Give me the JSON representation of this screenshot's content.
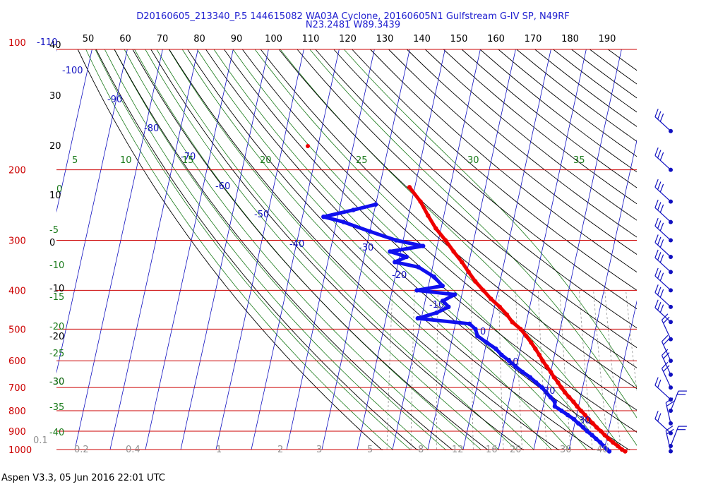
{
  "header": {
    "line1": "D20160605_213340_P.5 144615082 WA03A Cyclone, 20160605N1 Gulfstream G-IV SP, N49RF",
    "line2": "N23.2481 W89.3439"
  },
  "footer": "Aspen V3.3, 05 Jun 2016  22:01 UTC",
  "colors": {
    "isobar": "#cc0000",
    "isotherm": "#1010c0",
    "dry_adiabat": "#000000",
    "moist_adiabat": "#1a7a1a",
    "mixing_ratio": "#909090",
    "temperature": "#ee0000",
    "dewpoint": "#1010ee"
  },
  "chart_data": {
    "type": "scatter",
    "title": "",
    "xlabel": "",
    "ylabel": "",
    "x_axis_top_ticks": [
      "50",
      "60",
      "70",
      "80",
      "90",
      "100",
      "110",
      "120",
      "130",
      "140",
      "150",
      "160",
      "170",
      "180",
      "190"
    ],
    "pressure_ticks": [
      "100",
      "200",
      "300",
      "400",
      "500",
      "600",
      "700",
      "800",
      "900",
      "1000"
    ],
    "pressure_levels": [
      100,
      200,
      300,
      400,
      500,
      600,
      700,
      800,
      900,
      1000
    ],
    "left_scale_ticks": [
      "40",
      "30",
      "20",
      "10",
      "0",
      "-10",
      "-20",
      "-30"
    ],
    "isotherm_labels": [
      "-110",
      "-100",
      "-90",
      "-80",
      "-70",
      "-60",
      "-50",
      "-40",
      "-30",
      "-20",
      "-10",
      "0",
      "10",
      "20",
      "30"
    ],
    "moist_adiabat_labels": [
      "5",
      "10",
      "15",
      "20",
      "25",
      "30",
      "35"
    ],
    "left_moist_labels": [
      "0",
      "-5",
      "-10",
      "-15",
      "-20",
      "-25",
      "-30",
      "-35",
      "-40"
    ],
    "mixing_ratio_labels": [
      "0.1",
      "0.2",
      "0.4",
      "1",
      "2",
      "3",
      "5",
      "8",
      "12",
      "16",
      "20",
      "30",
      "40"
    ],
    "series": [
      {
        "key": "temperature",
        "points": [
          [
            221,
            -51.5
          ],
          [
            240,
            -47.5
          ],
          [
            260,
            -44.5
          ],
          [
            280,
            -41.5
          ],
          [
            300,
            -38.0
          ],
          [
            320,
            -35.0
          ],
          [
            340,
            -32.0
          ],
          [
            360,
            -29.5
          ],
          [
            380,
            -27.0
          ],
          [
            400,
            -24.2
          ],
          [
            420,
            -21.5
          ],
          [
            440,
            -18.5
          ],
          [
            460,
            -16.0
          ],
          [
            480,
            -14.0
          ],
          [
            500,
            -11.2
          ],
          [
            520,
            -9.2
          ],
          [
            540,
            -7.4
          ],
          [
            560,
            -5.8
          ],
          [
            580,
            -4.3
          ],
          [
            600,
            -3.0
          ],
          [
            620,
            -1.5
          ],
          [
            640,
            0.0
          ],
          [
            660,
            1.3
          ],
          [
            680,
            2.7
          ],
          [
            700,
            4.0
          ],
          [
            720,
            5.3
          ],
          [
            740,
            6.8
          ],
          [
            760,
            8.3
          ],
          [
            780,
            9.6
          ],
          [
            800,
            11.0
          ],
          [
            820,
            12.4
          ],
          [
            840,
            13.7
          ],
          [
            860,
            15.1
          ],
          [
            880,
            16.4
          ],
          [
            900,
            17.9
          ],
          [
            920,
            19.2
          ],
          [
            940,
            20.6
          ],
          [
            960,
            22.0
          ],
          [
            980,
            23.6
          ],
          [
            1000,
            25.0
          ],
          [
            1010,
            26.0
          ]
        ]
      },
      {
        "key": "dewpoint",
        "points": [
          [
            244,
            -60.0
          ],
          [
            252,
            -66.0
          ],
          [
            262,
            -74.0
          ],
          [
            270,
            -68.0
          ],
          [
            285,
            -60.0
          ],
          [
            300,
            -52.0
          ],
          [
            310,
            -44.0
          ],
          [
            320,
            -53.0
          ],
          [
            330,
            -48.0
          ],
          [
            340,
            -51.0
          ],
          [
            350,
            -44.0
          ],
          [
            370,
            -39.0
          ],
          [
            390,
            -36.0
          ],
          [
            400,
            -43.0
          ],
          [
            410,
            -32.0
          ],
          [
            425,
            -35.0
          ],
          [
            440,
            -33.0
          ],
          [
            455,
            -36.0
          ],
          [
            470,
            -41.0
          ],
          [
            485,
            -26.0
          ],
          [
            500,
            -24.0
          ],
          [
            520,
            -23.0
          ],
          [
            540,
            -20.0
          ],
          [
            560,
            -17.0
          ],
          [
            580,
            -15.0
          ],
          [
            600,
            -12.5
          ],
          [
            620,
            -10.3
          ],
          [
            640,
            -8.0
          ],
          [
            660,
            -5.5
          ],
          [
            680,
            -3.5
          ],
          [
            700,
            -1.5
          ],
          [
            720,
            0.0
          ],
          [
            740,
            1.5
          ],
          [
            760,
            3.0
          ],
          [
            780,
            3.3
          ],
          [
            800,
            5.5
          ],
          [
            820,
            7.5
          ],
          [
            840,
            9.5
          ],
          [
            860,
            11.0
          ],
          [
            880,
            12.6
          ],
          [
            900,
            14.0
          ],
          [
            920,
            15.6
          ],
          [
            940,
            17.0
          ],
          [
            960,
            18.4
          ],
          [
            980,
            19.6
          ],
          [
            1000,
            20.8
          ],
          [
            1010,
            21.5
          ]
        ]
      }
    ],
    "wind_pressures": [
      160,
      200,
      240,
      270,
      300,
      330,
      360,
      400,
      440,
      480,
      530,
      600,
      650,
      700,
      750,
      800,
      860,
      910,
      980,
      1010
    ]
  }
}
